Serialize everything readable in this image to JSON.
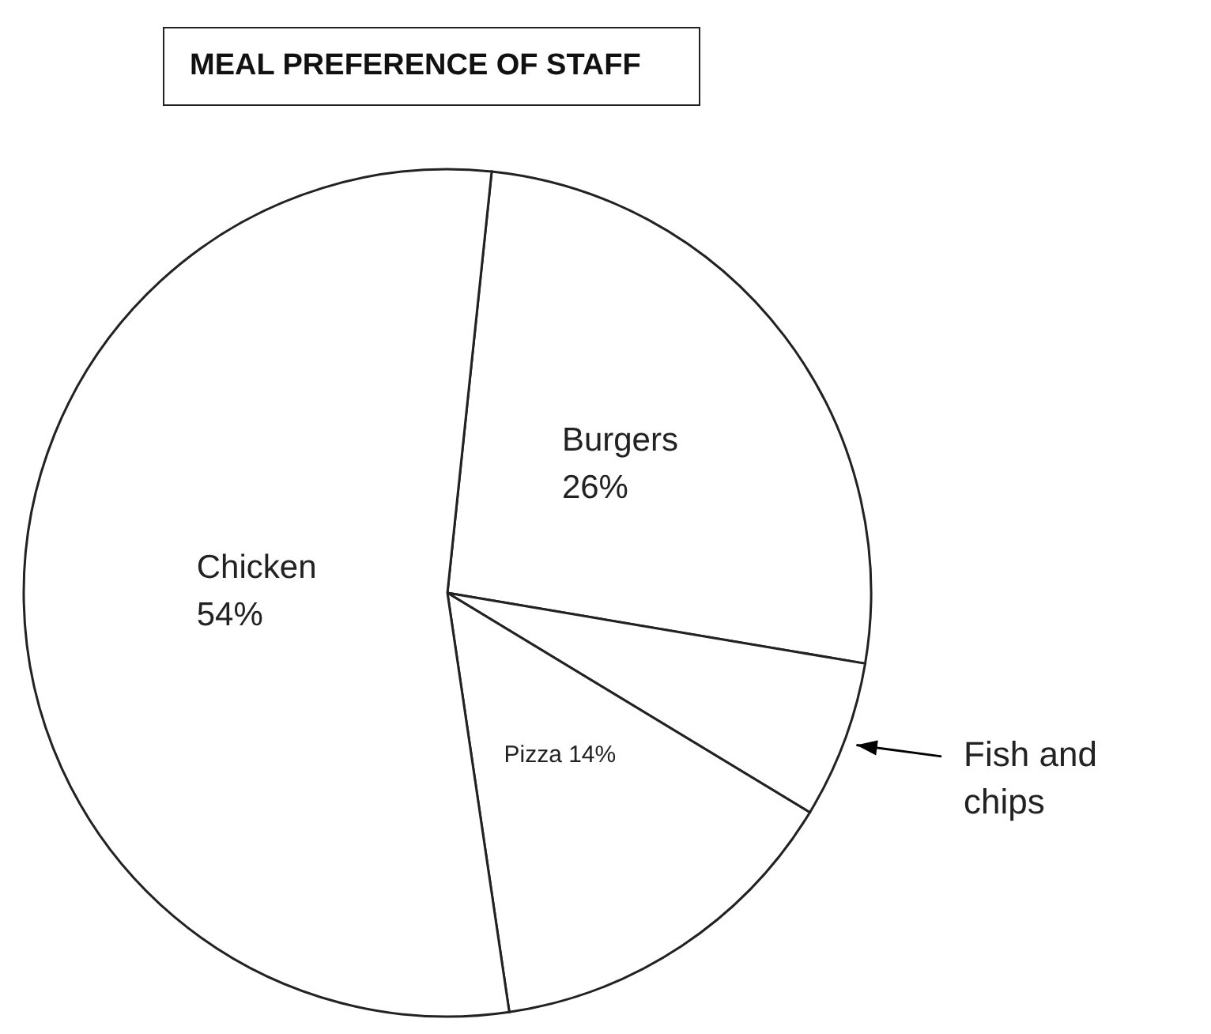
{
  "chart_data": {
    "type": "pie",
    "title": "MEAL PREFERENCE OF STAFF",
    "categories": [
      "Burgers",
      "Fish and chips",
      "Pizza",
      "Chicken"
    ],
    "values": [
      26,
      6,
      14,
      54
    ],
    "value_labels": [
      "26%",
      null,
      "14%",
      "54%"
    ],
    "colors": [
      "#ffffff",
      "#ffffff",
      "#ffffff",
      "#ffffff"
    ],
    "legend": false
  }
}
